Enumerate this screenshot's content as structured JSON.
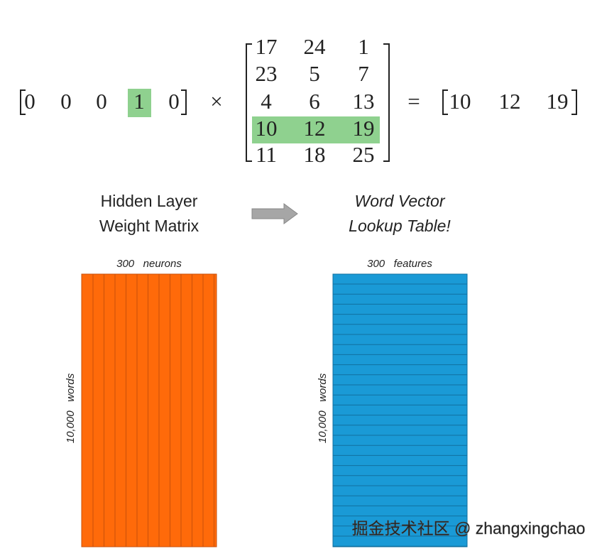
{
  "equation": {
    "one_hot": [
      0,
      0,
      0,
      1,
      0
    ],
    "times": "×",
    "matrix": [
      [
        17,
        24,
        1
      ],
      [
        23,
        5,
        7
      ],
      [
        4,
        6,
        13
      ],
      [
        10,
        12,
        19
      ],
      [
        11,
        18,
        25
      ]
    ],
    "equals": "=",
    "result": [
      10,
      12,
      19
    ]
  },
  "left_label": [
    "Hidden Layer",
    "Weight Matrix"
  ],
  "right_label": [
    "Word Vector",
    "Lookup Table!"
  ],
  "left_matrix": {
    "columns": "300   neurons",
    "rows": "10,000   words"
  },
  "right_matrix": {
    "columns": "300   features",
    "rows": "10,000   words"
  },
  "watermark": "掘金技术社区 @ zhangxingchao"
}
